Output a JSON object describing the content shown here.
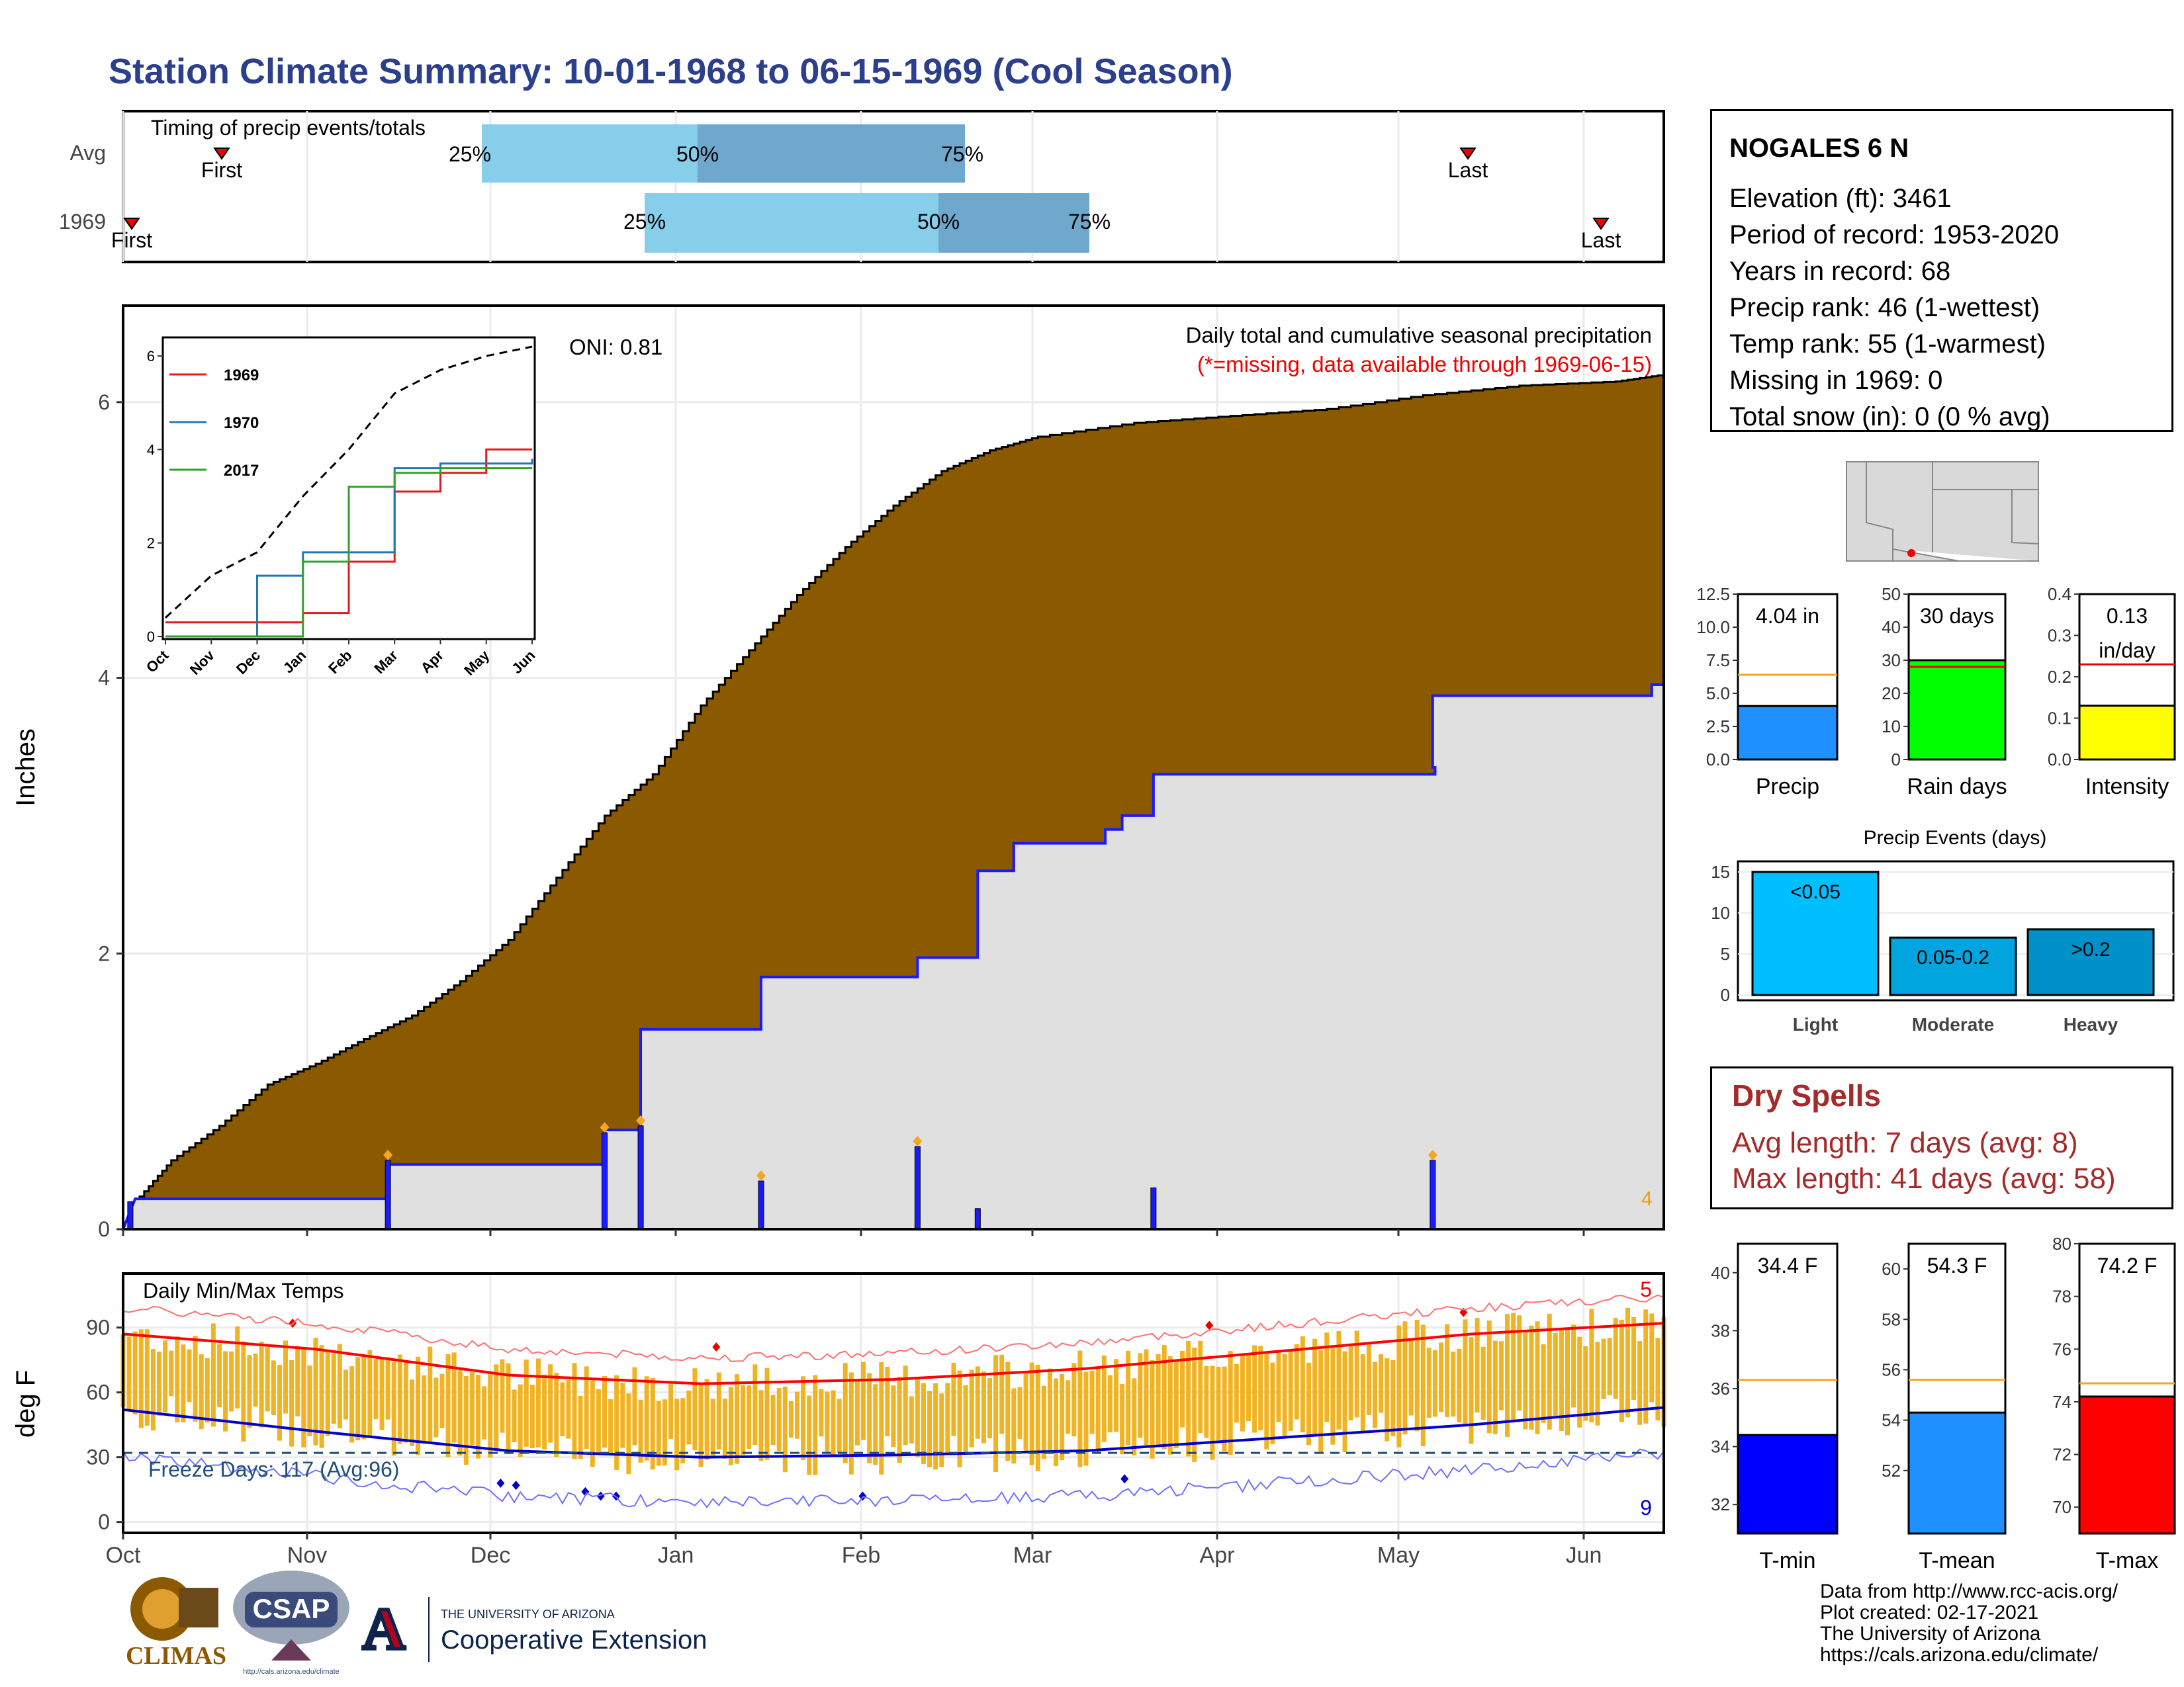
{
  "title": "Station Climate Summary: 10-01-1968 to 06-15-1969 (Cool Season)",
  "colors": {
    "title": "#2b3f8c",
    "precip_fill": "#8b5a00",
    "avg_fill": "#e0e0e0",
    "avg_line": "#1a1aff",
    "timing_light": "#87ceeb",
    "timing_dark": "#6fa8cd",
    "temp_bar": "#f0b323",
    "tmax_line": "#ff0000",
    "tmin_line": "#0000cc",
    "freeze_line": "#1f4e79",
    "dry_text": "#a52a2a"
  },
  "timing": {
    "title": "Timing of precip events/totals",
    "rows": [
      {
        "label": "Avg",
        "first": "First",
        "last": "Last",
        "p25": "25%",
        "p50": "50%",
        "p75": "75%"
      },
      {
        "label": "1969",
        "first": "First",
        "last": "Last",
        "p25": "25%",
        "p50": "50%",
        "p75": "75%"
      }
    ]
  },
  "station": {
    "name": "NOGALES 6 N",
    "lines": [
      "Elevation (ft): 3461",
      "Period of record: 1953-2020",
      "Years in record: 68",
      "Precip rank: 46 (1-wettest)",
      "Temp rank: 55 (1-warmest)",
      "Missing in 1969: 0",
      "Total snow (in): 0 (0 % avg)"
    ]
  },
  "main_plot": {
    "caption": "Daily total and cumulative seasonal precipitation",
    "caption_missing": "(*=missing, data available through 1969-06-15)",
    "oni": "ONI: 0.81",
    "ylabel": "Inches",
    "count_label": "4",
    "months": [
      "Oct",
      "Nov",
      "Dec",
      "Jan",
      "Feb",
      "Mar",
      "Apr",
      "May",
      "Jun"
    ]
  },
  "temp_plot": {
    "title": "Daily Min/Max Temps",
    "ylabel": "deg F",
    "freeze": "Freeze Days: 117 (Avg:96)",
    "count_top": "5",
    "count_bottom": "9"
  },
  "dry_spells": {
    "title": "Dry Spells",
    "avg": "Avg length: 7 days (avg: 8)",
    "max": "Max length: 41 days (avg: 58)"
  },
  "bar_panels": {
    "precip": {
      "label": "Precip",
      "value_label": "4.04 in"
    },
    "rain_days": {
      "label": "Rain days",
      "value_label": "30 days"
    },
    "intensity": {
      "label": "Intensity",
      "value_label_1": "0.13",
      "value_label_2": "in/day"
    },
    "events_title": "Precip Events (days)",
    "tmin": {
      "label": "T-min",
      "value_label": "34.4 F"
    },
    "tmean": {
      "label": "T-mean",
      "value_label": "54.3 F"
    },
    "tmax": {
      "label": "T-max",
      "value_label": "74.2 F"
    }
  },
  "logos": {
    "climas": "CLIMAS",
    "csap": "CSAP",
    "csap_url": "http://cals.arizona.edu/climate",
    "ua_small": "THE UNIVERSITY OF ARIZONA",
    "ua_big": "Cooperative Extension"
  },
  "credits": [
    "Data from http://www.rcc-acis.org/",
    "Plot created: 02-17-2021",
    "The University of Arizona",
    "https://cals.arizona.edu/climate/"
  ],
  "chart_data": [
    {
      "type": "area",
      "name": "cumulative_precip",
      "title": "Daily total and cumulative seasonal precipitation",
      "ylabel": "Inches",
      "ylim": [
        0,
        6.7
      ],
      "x_axis": "Oct 1968 - Jun 1969",
      "cumulative_1969": [
        [
          0,
          0
        ],
        [
          5,
          0.2
        ],
        [
          20,
          0.5
        ],
        [
          40,
          0.75
        ],
        [
          60,
          1.05
        ],
        [
          80,
          1.2
        ],
        [
          100,
          1.38
        ],
        [
          120,
          1.55
        ],
        [
          140,
          1.8
        ],
        [
          160,
          2.1
        ],
        [
          180,
          2.55
        ],
        [
          200,
          3.0
        ],
        [
          220,
          3.3
        ],
        [
          240,
          3.8
        ],
        [
          260,
          4.2
        ],
        [
          280,
          4.6
        ],
        [
          300,
          4.95
        ],
        [
          320,
          5.25
        ],
        [
          340,
          5.5
        ],
        [
          360,
          5.65
        ],
        [
          380,
          5.75
        ],
        [
          420,
          5.85
        ],
        [
          460,
          5.9
        ],
        [
          500,
          5.95
        ],
        [
          540,
          6.05
        ],
        [
          580,
          6.12
        ],
        [
          620,
          6.15
        ],
        [
          640,
          6.2
        ]
      ],
      "average_cumulative": [
        [
          0,
          0
        ],
        [
          5,
          0.22
        ],
        [
          110,
          0.22
        ],
        [
          110,
          0.47
        ],
        [
          200,
          0.47
        ],
        [
          200,
          0.72
        ],
        [
          215,
          0.72
        ],
        [
          215,
          1.45
        ],
        [
          265,
          1.45
        ],
        [
          265,
          1.83
        ],
        [
          330,
          1.83
        ],
        [
          330,
          1.97
        ],
        [
          355,
          1.97
        ],
        [
          355,
          2.6
        ],
        [
          370,
          2.6
        ],
        [
          370,
          2.8
        ],
        [
          408,
          2.8
        ],
        [
          408,
          2.9
        ],
        [
          415,
          2.9
        ],
        [
          415,
          3.0
        ],
        [
          428,
          3.0
        ],
        [
          428,
          3.3
        ],
        [
          545,
          3.3
        ],
        [
          545,
          3.35
        ],
        [
          544,
          3.35
        ],
        [
          544,
          3.87
        ],
        [
          635,
          3.87
        ],
        [
          635,
          3.95
        ],
        [
          640,
          3.95
        ]
      ],
      "daily_precip": [
        [
          3,
          0.2
        ],
        [
          110,
          0.5
        ],
        [
          200,
          0.7
        ],
        [
          215,
          0.75
        ],
        [
          265,
          0.35
        ],
        [
          330,
          0.6
        ],
        [
          355,
          0.15
        ],
        [
          428,
          0.3
        ],
        [
          544,
          0.5
        ]
      ],
      "oni": 0.81
    },
    {
      "type": "line",
      "name": "inset_cumulative_comparison",
      "ylim": [
        0,
        6.2
      ],
      "x": [
        "Oct",
        "Nov",
        "Dec",
        "Jan",
        "Feb",
        "Mar",
        "Apr",
        "May",
        "Jun"
      ],
      "series": [
        {
          "name": "1969",
          "values": [
            0.3,
            0.3,
            0.3,
            0.5,
            1.6,
            3.1,
            3.5,
            4.0,
            4.0
          ]
        },
        {
          "name": "1970",
          "values": [
            0.0,
            0.0,
            1.3,
            1.8,
            1.8,
            3.6,
            3.7,
            3.7,
            3.8
          ]
        },
        {
          "name": "2017",
          "values": [
            0.0,
            0.0,
            0.0,
            1.6,
            3.2,
            3.5,
            3.6,
            3.6,
            3.6
          ]
        }
      ],
      "average_dashed": [
        0.4,
        1.3,
        1.8,
        3.0,
        4.0,
        5.2,
        5.7,
        6.0,
        6.2
      ]
    },
    {
      "type": "bar",
      "name": "daily_min_max_temps",
      "title": "Daily Min/Max Temps",
      "ylabel": "deg F",
      "ylim": [
        -5,
        115
      ],
      "months": [
        "Oct",
        "Nov",
        "Dec",
        "Jan",
        "Feb",
        "Mar",
        "Apr",
        "May",
        "Jun"
      ],
      "avg_tmax_monthly": [
        87,
        80,
        68,
        64,
        66,
        71,
        79,
        87,
        92
      ],
      "avg_tmin_monthly": [
        52,
        42,
        33,
        30,
        31,
        33,
        39,
        45,
        53
      ],
      "freeze_threshold": 32,
      "freeze_days": 117,
      "freeze_days_avg": 96
    },
    {
      "type": "bar",
      "name": "season_totals",
      "panels": [
        {
          "label": "Precip",
          "value": 4.04,
          "average": 6.4,
          "ylim": [
            0,
            12.5
          ],
          "ticks": [
            0.0,
            2.5,
            5.0,
            7.5,
            10.0,
            12.5
          ]
        },
        {
          "label": "Rain days",
          "value": 30,
          "average": 28,
          "ylim": [
            0,
            50
          ],
          "ticks": [
            0,
            10,
            20,
            30,
            40,
            50
          ]
        },
        {
          "label": "Intensity",
          "value": 0.13,
          "average": 0.23,
          "ylim": [
            0,
            0.4
          ],
          "ticks": [
            0.0,
            0.1,
            0.2,
            0.3,
            0.4
          ]
        }
      ]
    },
    {
      "type": "bar",
      "name": "precip_events",
      "title": "Precip Events (days)",
      "categories": [
        "Light",
        "Moderate",
        "Heavy"
      ],
      "bar_labels": [
        "<0.05",
        "0.05-0.2",
        ">0.2"
      ],
      "values": [
        15,
        7,
        8
      ],
      "ylim": [
        0,
        15
      ]
    },
    {
      "type": "bar",
      "name": "temperature_means",
      "panels": [
        {
          "label": "T-min",
          "value": 34.4,
          "average": 36.3,
          "ylim": [
            31,
            41
          ],
          "ticks": [
            32,
            34,
            36,
            38,
            40
          ]
        },
        {
          "label": "T-mean",
          "value": 54.3,
          "average": 55.6,
          "ylim": [
            49.5,
            61
          ],
          "ticks": [
            52,
            54,
            56,
            58,
            60
          ]
        },
        {
          "label": "T-max",
          "value": 74.2,
          "average": 74.7,
          "ylim": [
            69,
            80
          ],
          "ticks": [
            70,
            72,
            74,
            76,
            78,
            80
          ]
        }
      ]
    }
  ]
}
